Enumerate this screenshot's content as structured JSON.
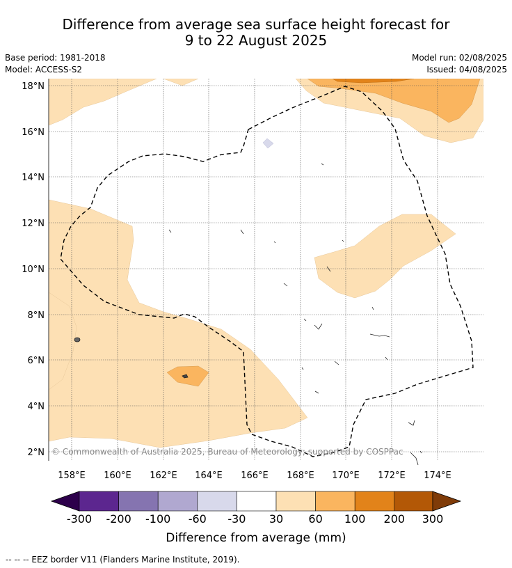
{
  "title": {
    "line1": "Difference from average sea surface height forecast for",
    "line2": "9 to 22 August 2025"
  },
  "meta": {
    "base_period": "Base period: 1981-2018",
    "model": "Model: ACCESS-S2",
    "model_run": "Model run: 02/08/2025",
    "issued": "Issued: 04/08/2025"
  },
  "map": {
    "lat_labels": [
      "18°N",
      "16°N",
      "14°N",
      "12°N",
      "10°N",
      "8°N",
      "6°N",
      "4°N",
      "2°N"
    ],
    "lon_labels": [
      "158°E",
      "160°E",
      "162°E",
      "164°E",
      "166°E",
      "168°E",
      "170°E",
      "172°E",
      "174°E"
    ],
    "copyright": "© Commonwealth of Australia 2025, Bureau of Meteorology; supported by COSPPac",
    "colors": {
      "c30_60": "#fde0b4",
      "c60_100": "#fab55f",
      "c100_200": "#e2831a",
      "cneg60_30": "#d8d9eb"
    }
  },
  "colorbar": {
    "ticks": [
      "-300",
      "-200",
      "-100",
      "-60",
      "-30",
      "30",
      "60",
      "100",
      "200",
      "300"
    ],
    "colors": [
      "#5c268f",
      "#8574b0",
      "#b0a8d0",
      "#d8d9eb",
      "#ffffff",
      "#fde0b4",
      "#fab55f",
      "#e2831a",
      "#b35806"
    ],
    "low_extend_color": "#2d004b",
    "high_extend_color": "#7f3b08",
    "label": "Difference from average (mm)"
  },
  "footnote": "--  --  -- EEZ border V11 (Flanders Marine Institute, 2019)."
}
